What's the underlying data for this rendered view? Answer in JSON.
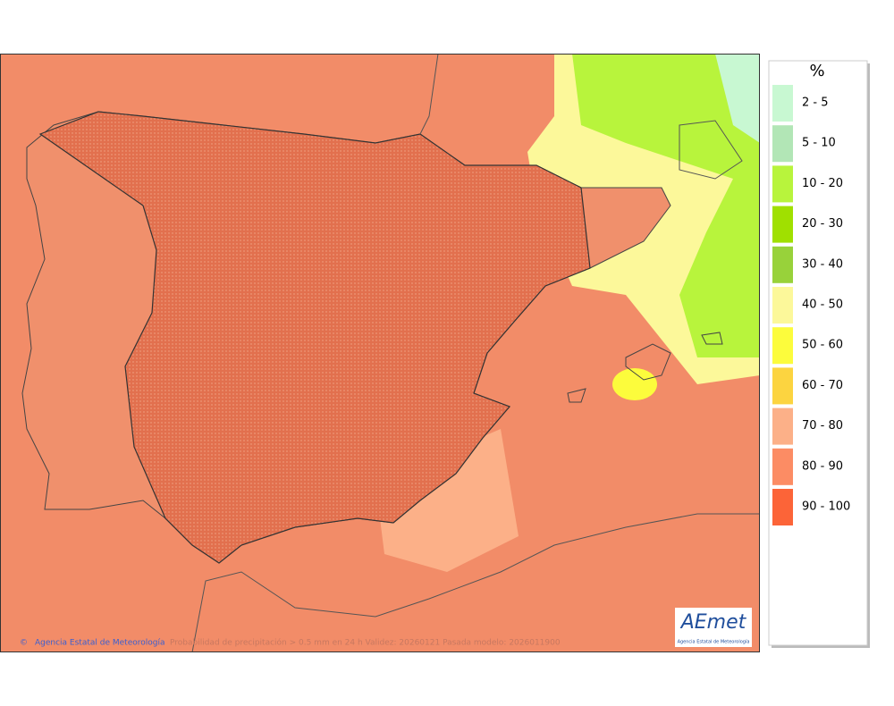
{
  "legend": {
    "title": "%",
    "items": [
      {
        "label": "2 - 5",
        "color": "#c8f8d2"
      },
      {
        "label": "5 - 10",
        "color": "#b2e6b6"
      },
      {
        "label": "10 - 20",
        "color": "#b8f43c"
      },
      {
        "label": "20 - 30",
        "color": "#a0e000"
      },
      {
        "label": "30 - 40",
        "color": "#98d23a"
      },
      {
        "label": "40 - 50",
        "color": "#fcf89a"
      },
      {
        "label": "50 - 60",
        "color": "#fcfc3c"
      },
      {
        "label": "60 - 70",
        "color": "#fcd440"
      },
      {
        "label": "70 - 80",
        "color": "#fcb088"
      },
      {
        "label": "80 - 90",
        "color": "#fc8c64"
      },
      {
        "label": "90 - 100",
        "color": "#fc6438"
      }
    ]
  },
  "credit": "Agencia Estatal de Meteorología",
  "caption": "Probabilidad de precipitación > 0.5 mm en 24 h Validez: 20260121 Pasada modelo: 2026011900",
  "logo": {
    "name": "AEmet",
    "subtitle": "Agencia Estatal de Meteorología"
  }
}
